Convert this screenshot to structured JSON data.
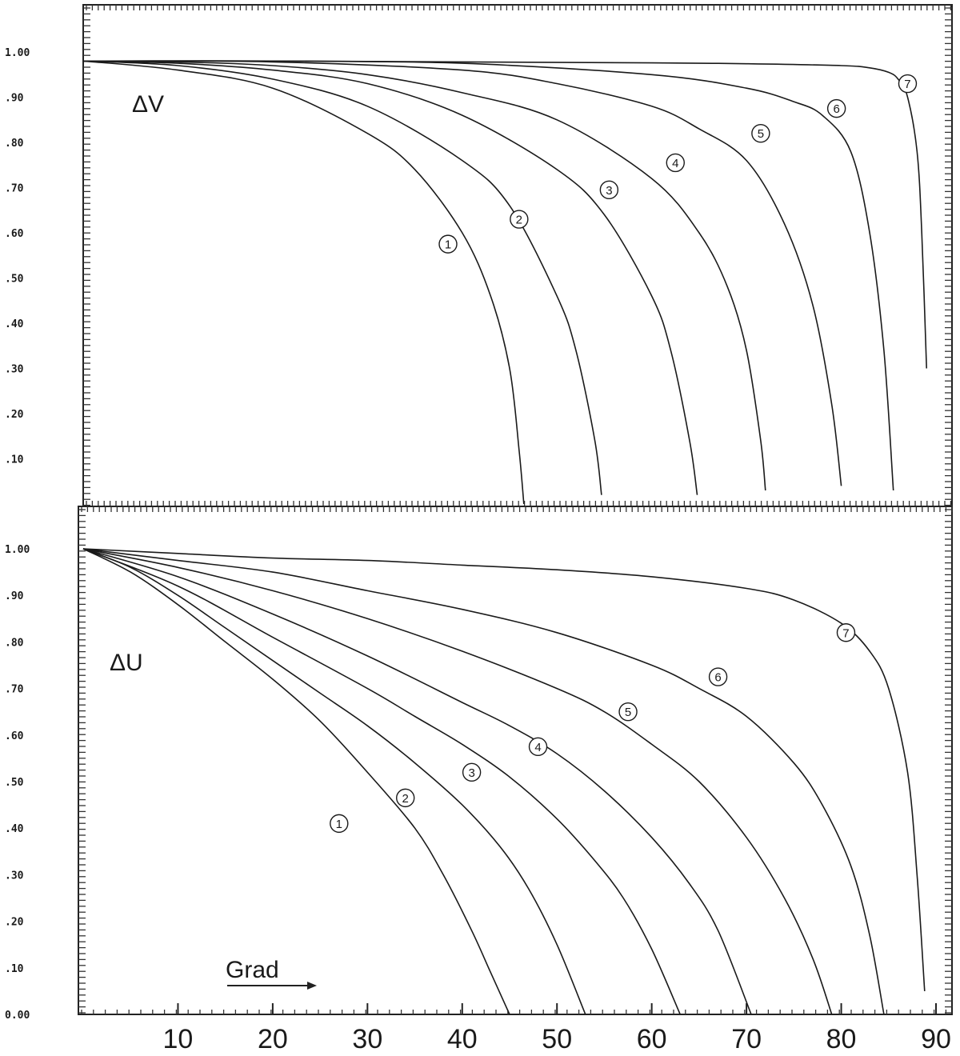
{
  "chart_data": [
    {
      "type": "line",
      "ylabel": "ΔV",
      "xlim": [
        0,
        90
      ],
      "ylim": [
        0,
        1.1
      ],
      "y_ticks": [
        ".10",
        ".20",
        ".30",
        ".40",
        ".50",
        ".60",
        ".70",
        ".80",
        ".90",
        "1.00"
      ],
      "grid": false,
      "series": [
        {
          "name": "1",
          "x": [
            0,
            10,
            20,
            30,
            35,
            40,
            43,
            45,
            46,
            46.5
          ],
          "y": [
            0.98,
            0.96,
            0.92,
            0.82,
            0.74,
            0.6,
            0.46,
            0.3,
            0.12,
            0.0
          ]
        },
        {
          "name": "2",
          "x": [
            0,
            10,
            20,
            30,
            40,
            45,
            50,
            52,
            54,
            54.7
          ],
          "y": [
            0.98,
            0.97,
            0.94,
            0.88,
            0.76,
            0.66,
            0.46,
            0.34,
            0.14,
            0.02
          ]
        },
        {
          "name": "3",
          "x": [
            0,
            10,
            20,
            30,
            40,
            50,
            55,
            60,
            62,
            64,
            64.8
          ],
          "y": [
            0.98,
            0.975,
            0.96,
            0.93,
            0.86,
            0.74,
            0.64,
            0.46,
            0.34,
            0.14,
            0.02
          ]
        },
        {
          "name": "4",
          "x": [
            0,
            10,
            20,
            30,
            40,
            50,
            60,
            65,
            68,
            70,
            71.5,
            72
          ],
          "y": [
            0.98,
            0.978,
            0.97,
            0.95,
            0.91,
            0.85,
            0.72,
            0.6,
            0.48,
            0.34,
            0.14,
            0.03
          ]
        },
        {
          "name": "5",
          "x": [
            0,
            20,
            40,
            50,
            60,
            65,
            70,
            74,
            77,
            79,
            80
          ],
          "y": [
            0.98,
            0.978,
            0.96,
            0.93,
            0.88,
            0.83,
            0.76,
            0.62,
            0.44,
            0.22,
            0.04
          ]
        },
        {
          "name": "6",
          "x": [
            0,
            20,
            40,
            60,
            70,
            75,
            78,
            81,
            83,
            84.5,
            85.5
          ],
          "y": [
            0.98,
            0.98,
            0.975,
            0.95,
            0.92,
            0.89,
            0.86,
            0.78,
            0.6,
            0.34,
            0.03
          ]
        },
        {
          "name": "7",
          "x": [
            0,
            20,
            40,
            60,
            70,
            80,
            83,
            85,
            86,
            87,
            88,
            88.5,
            89
          ],
          "y": [
            0.98,
            0.98,
            0.978,
            0.976,
            0.974,
            0.97,
            0.965,
            0.955,
            0.94,
            0.9,
            0.78,
            0.6,
            0.3
          ]
        }
      ],
      "markers": [
        {
          "label": "1",
          "x": 38.5,
          "y": 0.575
        },
        {
          "label": "2",
          "x": 46,
          "y": 0.63
        },
        {
          "label": "3",
          "x": 55.5,
          "y": 0.695
        },
        {
          "label": "4",
          "x": 62.5,
          "y": 0.755
        },
        {
          "label": "5",
          "x": 71.5,
          "y": 0.82
        },
        {
          "label": "6",
          "x": 79.5,
          "y": 0.875
        },
        {
          "label": "7",
          "x": 87,
          "y": 0.93
        }
      ]
    },
    {
      "type": "line",
      "ylabel": "ΔU",
      "xlabel": "Grad",
      "xlim": [
        0,
        90
      ],
      "ylim": [
        0,
        1.05
      ],
      "x_ticks": [
        "10",
        "20",
        "30",
        "40",
        "50",
        "60",
        "70",
        "80",
        "90"
      ],
      "y_ticks": [
        "0.00",
        ".10",
        ".20",
        ".30",
        ".40",
        ".50",
        ".60",
        ".70",
        ".80",
        ".90",
        "1.00"
      ],
      "grid": false,
      "series": [
        {
          "name": "1",
          "x": [
            0,
            5,
            10,
            15,
            20,
            25,
            30,
            35,
            38,
            41,
            43,
            45
          ],
          "y": [
            1.0,
            0.95,
            0.88,
            0.8,
            0.72,
            0.63,
            0.52,
            0.4,
            0.3,
            0.18,
            0.09,
            0.0
          ]
        },
        {
          "name": "2",
          "x": [
            0,
            5,
            10,
            15,
            20,
            25,
            30,
            35,
            40,
            44,
            47,
            50,
            53
          ],
          "y": [
            1.0,
            0.96,
            0.9,
            0.83,
            0.76,
            0.69,
            0.62,
            0.54,
            0.45,
            0.36,
            0.27,
            0.15,
            0.0
          ]
        },
        {
          "name": "3",
          "x": [
            0,
            10,
            20,
            30,
            35,
            40,
            45,
            50,
            54,
            57,
            60,
            63
          ],
          "y": [
            1.0,
            0.92,
            0.81,
            0.7,
            0.64,
            0.58,
            0.51,
            0.42,
            0.33,
            0.25,
            0.14,
            0.0
          ]
        },
        {
          "name": "4",
          "x": [
            0,
            10,
            20,
            30,
            40,
            45,
            50,
            55,
            60,
            64,
            67,
            70.5
          ],
          "y": [
            1.0,
            0.94,
            0.86,
            0.77,
            0.67,
            0.62,
            0.56,
            0.48,
            0.38,
            0.28,
            0.18,
            0.0
          ]
        },
        {
          "name": "5",
          "x": [
            0,
            10,
            20,
            30,
            40,
            50,
            55,
            60,
            65,
            70,
            74,
            77,
            79
          ],
          "y": [
            1.0,
            0.96,
            0.91,
            0.85,
            0.78,
            0.7,
            0.65,
            0.58,
            0.5,
            0.38,
            0.25,
            0.12,
            0.0
          ]
        },
        {
          "name": "6",
          "x": [
            0,
            10,
            20,
            30,
            40,
            50,
            60,
            65,
            70,
            75,
            78,
            81,
            83,
            84.5
          ],
          "y": [
            1.0,
            0.975,
            0.95,
            0.91,
            0.87,
            0.82,
            0.75,
            0.7,
            0.64,
            0.54,
            0.45,
            0.32,
            0.17,
            0.0
          ]
        },
        {
          "name": "7",
          "x": [
            0,
            10,
            20,
            30,
            40,
            50,
            60,
            70,
            75,
            80,
            83,
            85,
            87,
            88,
            88.8
          ],
          "y": [
            1.0,
            0.99,
            0.98,
            0.975,
            0.965,
            0.955,
            0.94,
            0.915,
            0.89,
            0.84,
            0.78,
            0.7,
            0.52,
            0.3,
            0.05
          ]
        }
      ],
      "markers": [
        {
          "label": "1",
          "x": 27,
          "y": 0.41
        },
        {
          "label": "2",
          "x": 34,
          "y": 0.465
        },
        {
          "label": "3",
          "x": 41,
          "y": 0.52
        },
        {
          "label": "4",
          "x": 48,
          "y": 0.575
        },
        {
          "label": "5",
          "x": 57.5,
          "y": 0.65
        },
        {
          "label": "6",
          "x": 67,
          "y": 0.725
        },
        {
          "label": "7",
          "x": 80.5,
          "y": 0.82
        }
      ]
    }
  ]
}
